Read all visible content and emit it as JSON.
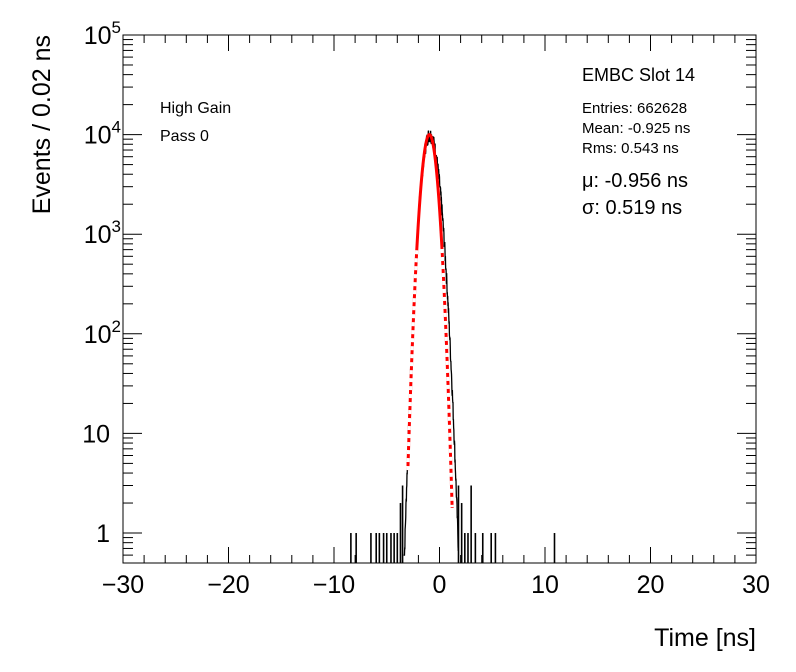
{
  "chart_data": {
    "type": "histogram",
    "xlabel": "Time [ns]",
    "ylabel": "Events / 0.02 ns",
    "xlim": [
      -30,
      30
    ],
    "ylim": [
      0.5,
      100000
    ],
    "yscale": "log",
    "x_ticks": [
      {
        "value": -30,
        "label": "−30"
      },
      {
        "value": -20,
        "label": "−20"
      },
      {
        "value": -10,
        "label": "−10"
      },
      {
        "value": 0,
        "label": "0"
      },
      {
        "value": 10,
        "label": "10"
      },
      {
        "value": 20,
        "label": "20"
      },
      {
        "value": 30,
        "label": "30"
      }
    ],
    "y_ticks": [
      {
        "value": 1,
        "base": "1",
        "exp": ""
      },
      {
        "value": 10,
        "base": "10",
        "exp": ""
      },
      {
        "value": 100,
        "base": "10",
        "exp": "2"
      },
      {
        "value": 1000,
        "base": "10",
        "exp": "3"
      },
      {
        "value": 10000,
        "base": "10",
        "exp": "4"
      },
      {
        "value": 100000,
        "base": "10",
        "exp": "5"
      }
    ],
    "annotations": {
      "left_line1": "High Gain",
      "left_line2": "Pass 0",
      "title": "EMBC Slot 14",
      "entries": "Entries: 662628",
      "mean": "Mean: -0.925 ns",
      "rms": "Rms: 0.543 ns",
      "mu": "μ: -0.956 ns",
      "sigma": "σ: 0.519 ns"
    },
    "histogram": {
      "color": "#000000",
      "outlier_bins": [
        {
          "x": -8.4,
          "y": 1
        },
        {
          "x": -7.9,
          "y": 1
        },
        {
          "x": -6.5,
          "y": 1
        },
        {
          "x": -6.0,
          "y": 1
        },
        {
          "x": -5.7,
          "y": 1
        },
        {
          "x": -5.3,
          "y": 1
        },
        {
          "x": -5.0,
          "y": 1
        },
        {
          "x": -4.6,
          "y": 1
        },
        {
          "x": -4.3,
          "y": 1
        },
        {
          "x": -4.0,
          "y": 1
        },
        {
          "x": -3.7,
          "y": 2
        },
        {
          "x": -3.5,
          "y": 3
        },
        {
          "x": 1.8,
          "y": 3
        },
        {
          "x": 2.1,
          "y": 2
        },
        {
          "x": 2.4,
          "y": 1
        },
        {
          "x": 2.7,
          "y": 1
        },
        {
          "x": 3.0,
          "y": 3
        },
        {
          "x": 3.4,
          "y": 1
        },
        {
          "x": 4.1,
          "y": 1
        },
        {
          "x": 4.9,
          "y": 1
        },
        {
          "x": 5.3,
          "y": 1
        },
        {
          "x": 10.9,
          "y": 1
        }
      ],
      "peak": {
        "x": -0.925,
        "y": 10000,
        "sigma": 0.543,
        "tail_sigma": 0.62
      }
    },
    "fit": {
      "type": "gaussian",
      "mu": -0.956,
      "sigma": 0.519,
      "amplitude": 10000,
      "color": "#ff0000",
      "range": [
        -3.0,
        1.2
      ]
    }
  }
}
